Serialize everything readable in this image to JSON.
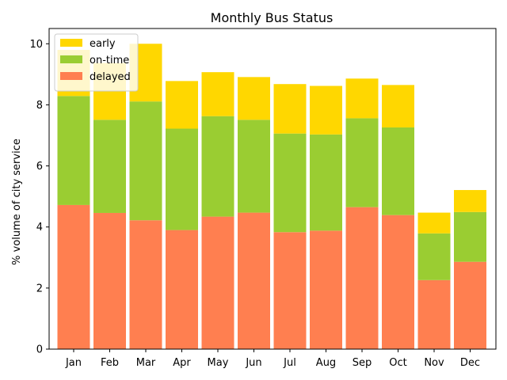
{
  "chart_data": {
    "type": "bar",
    "stacked": true,
    "title": "Monthly Bus Status",
    "xlabel": "",
    "ylabel": "% volume of city service",
    "ylim": [
      0,
      10.5
    ],
    "yticks": [
      0,
      2,
      4,
      6,
      8,
      10
    ],
    "grid": false,
    "legend_position": "top-left",
    "categories": [
      "Jan",
      "Feb",
      "Mar",
      "Apr",
      "May",
      "Jun",
      "Jul",
      "Aug",
      "Sep",
      "Oct",
      "Nov",
      "Dec"
    ],
    "series": [
      {
        "name": "delayed",
        "color": "#ff7f50",
        "values": [
          4.72,
          4.46,
          4.22,
          3.9,
          4.34,
          4.47,
          3.83,
          3.88,
          4.65,
          4.39,
          2.26,
          2.86
        ]
      },
      {
        "name": "on-time",
        "color": "#9acd32",
        "values": [
          3.57,
          3.05,
          3.89,
          3.32,
          3.29,
          3.04,
          3.23,
          3.15,
          2.91,
          2.87,
          1.53,
          1.63
        ]
      },
      {
        "name": "early",
        "color": "#ffd700",
        "values": [
          1.51,
          1.86,
          1.89,
          1.56,
          1.44,
          1.4,
          1.62,
          1.59,
          1.3,
          1.39,
          0.68,
          0.72
        ]
      }
    ]
  }
}
